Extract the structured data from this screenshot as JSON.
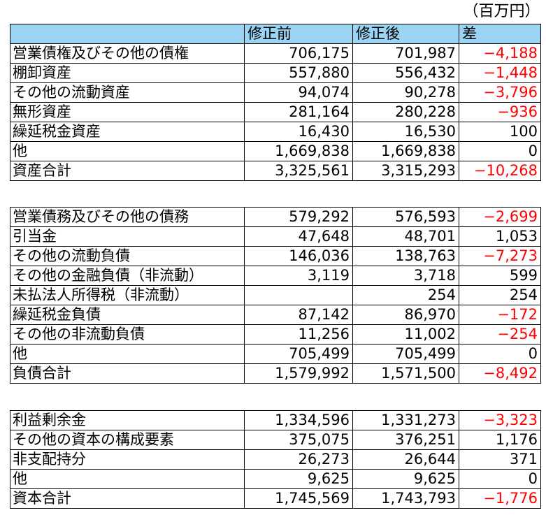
{
  "unit": "（百万円）",
  "header": [
    "",
    "修正前",
    "修正後",
    "差"
  ],
  "sections": [
    {
      "rows": [
        {
          "label": "営業債権及びその他の債権",
          "before": "706,175",
          "after": "701,987",
          "diff": "−4,188",
          "negative": true
        },
        {
          "label": "棚卸資産",
          "before": "557,880",
          "after": "556,432",
          "diff": "−1,448",
          "negative": true
        },
        {
          "label": "その他の流動資産",
          "before": "94,074",
          "after": "90,278",
          "diff": "−3,796",
          "negative": true
        },
        {
          "label": "無形資産",
          "before": "281,164",
          "after": "280,228",
          "diff": "−936",
          "negative": true
        },
        {
          "label": "繰延税金資産",
          "before": "16,430",
          "after": "16,530",
          "diff": "100",
          "negative": false
        },
        {
          "label": "他",
          "before": "1,669,838",
          "after": "1,669,838",
          "diff": "0",
          "negative": false
        },
        {
          "label": "資産合計",
          "before": "3,325,561",
          "after": "3,315,293",
          "diff": "−10,268",
          "negative": true
        }
      ]
    },
    {
      "rows": [
        {
          "label": "営業債務及びその他の債務",
          "before": "579,292",
          "after": "576,593",
          "diff": "−2,699",
          "negative": true
        },
        {
          "label": "引当金",
          "before": "47,648",
          "after": "48,701",
          "diff": "1,053",
          "negative": false
        },
        {
          "label": "その他の流動負債",
          "before": "146,036",
          "after": "138,763",
          "diff": "−7,273",
          "negative": true
        },
        {
          "label": "その他の金融負債（非流動）",
          "before": "3,119",
          "after": "3,718",
          "diff": "599",
          "negative": false
        },
        {
          "label": "未払法人所得税（非流動）",
          "before": "",
          "after": "254",
          "diff": "254",
          "negative": false
        },
        {
          "label": "繰延税金負債",
          "before": "87,142",
          "after": "86,970",
          "diff": "−172",
          "negative": true
        },
        {
          "label": "その他の非流動負債",
          "before": "11,256",
          "after": "11,002",
          "diff": "−254",
          "negative": true
        },
        {
          "label": "他",
          "before": "705,499",
          "after": "705,499",
          "diff": "0",
          "negative": false
        },
        {
          "label": "負債合計",
          "before": "1,579,992",
          "after": "1,571,500",
          "diff": "−8,492",
          "negative": true
        }
      ]
    },
    {
      "rows": [
        {
          "label": "利益剰余金",
          "before": "1,334,596",
          "after": "1,331,273",
          "diff": "−3,323",
          "negative": true
        },
        {
          "label": "その他の資本の構成要素",
          "before": "375,075",
          "after": "376,251",
          "diff": "1,176",
          "negative": false
        },
        {
          "label": "非支配持分",
          "before": "26,273",
          "after": "26,644",
          "diff": "371",
          "negative": false
        },
        {
          "label": "他",
          "before": "9,625",
          "after": "9,625",
          "diff": "0",
          "negative": false
        },
        {
          "label": "資本合計",
          "before": "1,745,569",
          "after": "1,743,793",
          "diff": "−1,776",
          "negative": true
        }
      ]
    }
  ]
}
